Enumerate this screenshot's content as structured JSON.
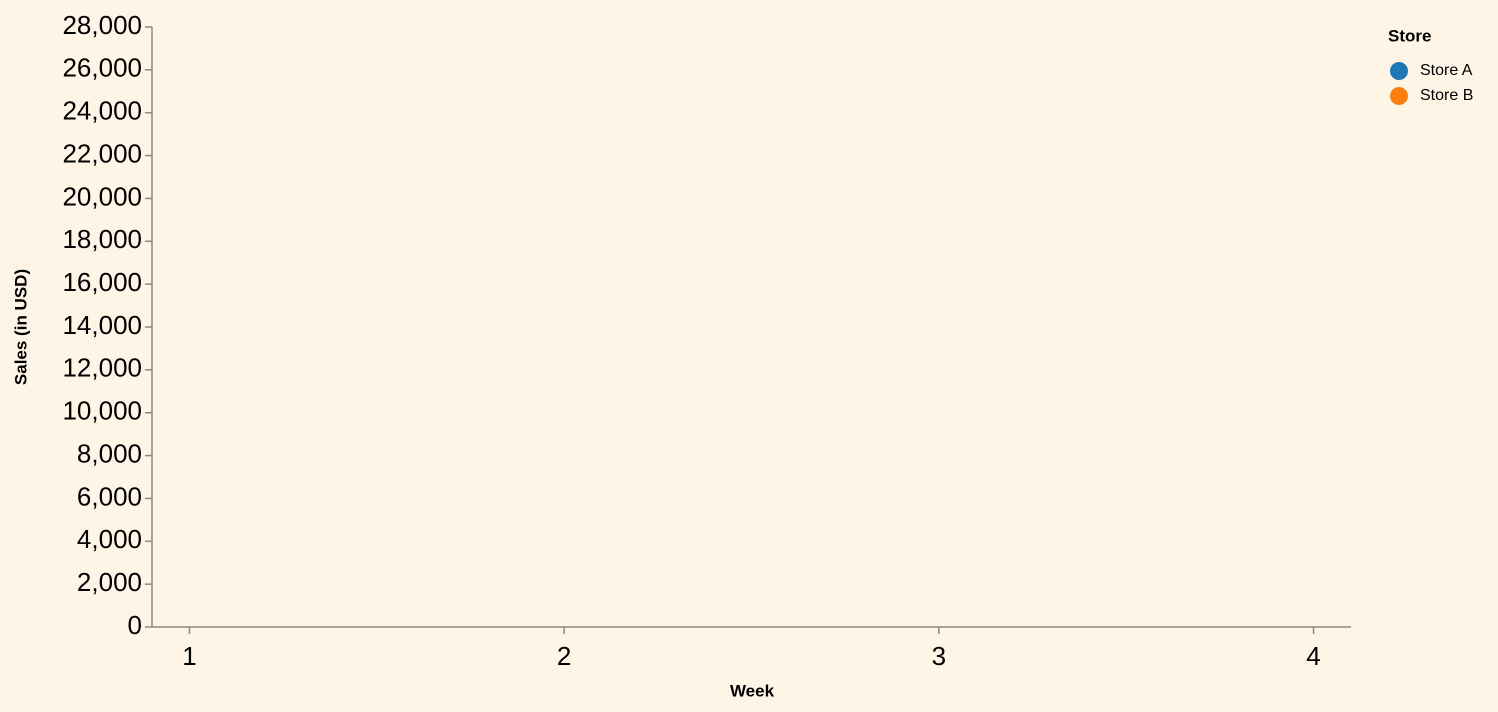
{
  "chart_data": {
    "type": "line",
    "x_label": "Week",
    "y_label": "Sales (in USD)",
    "legend_title": "Store",
    "series": [
      {
        "name": "Store A",
        "color": "#1f77b4"
      },
      {
        "name": "Store B",
        "color": "#ff7f0e"
      }
    ],
    "xlim": [
      0.9,
      4.1
    ],
    "xticks": [
      1,
      2,
      3,
      4
    ],
    "ylim": [
      0,
      28000
    ],
    "yticks": [
      0,
      {
        "value": 2000,
        "label": "2,000"
      },
      {
        "value": 4000,
        "label": "4,000"
      },
      {
        "value": 6000,
        "label": "6,000"
      },
      {
        "value": 8000,
        "label": "8,000"
      },
      {
        "value": 10000,
        "label": "10,000"
      },
      {
        "value": 12000,
        "label": "12,000"
      },
      {
        "value": 14000,
        "label": "14,000"
      },
      {
        "value": 16000,
        "label": "16,000"
      },
      {
        "value": 18000,
        "label": "18,000"
      },
      {
        "value": 20000,
        "label": "20,000"
      },
      {
        "value": 22000,
        "label": "22,000"
      },
      {
        "value": 24000,
        "label": "24,000"
      },
      {
        "value": 26000,
        "label": "26,000"
      },
      {
        "value": 28000,
        "label": "28,000"
      }
    ],
    "grid": false,
    "legend": "right"
  }
}
